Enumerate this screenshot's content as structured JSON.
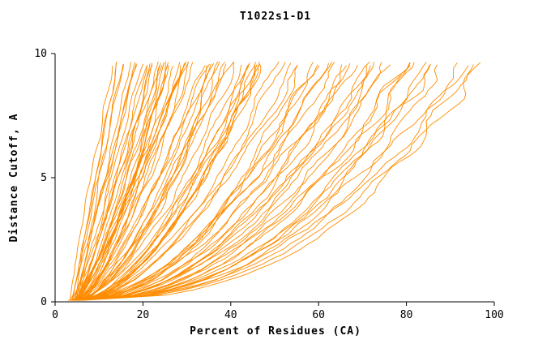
{
  "chart_data": {
    "type": "line",
    "title": "T1022s1-D1",
    "xlabel": "Percent of Residues (CA)",
    "ylabel": "Distance Cutoff, A",
    "xlim": [
      0,
      100
    ],
    "ylim": [
      0,
      10
    ],
    "x_ticks": [
      0,
      20,
      40,
      60,
      80,
      100
    ],
    "y_ticks": [
      0,
      5,
      10
    ],
    "grid": false,
    "legend": "none",
    "line_color": "#FF8C00",
    "axis_color": "#000000",
    "background": "#FFFFFF",
    "curve_top_y": 9.6,
    "curve_format": "[x_start_percent, x_end_percent, shape_exponent] per model curve; y rises 0 to ~9.6",
    "curves": [
      [
        4,
        13.5,
        1.1
      ],
      [
        4.5,
        14,
        1.0
      ],
      [
        5,
        14.5,
        1.2
      ],
      [
        4,
        15,
        0.95
      ],
      [
        5.5,
        16,
        1.05
      ],
      [
        4.5,
        17,
        0.9
      ],
      [
        5,
        18,
        1.0
      ],
      [
        6,
        18.5,
        0.85
      ],
      [
        4,
        19,
        0.9
      ],
      [
        5,
        20,
        0.8
      ],
      [
        4.5,
        21,
        0.85
      ],
      [
        5.5,
        22,
        0.75
      ],
      [
        4,
        23,
        0.9
      ],
      [
        6,
        24,
        0.7
      ],
      [
        5,
        25,
        0.8
      ],
      [
        4.5,
        26,
        0.75
      ],
      [
        5.5,
        27,
        0.7
      ],
      [
        4,
        28,
        0.85
      ],
      [
        6,
        29,
        0.72
      ],
      [
        5,
        30,
        0.78
      ],
      [
        4.5,
        20.5,
        0.95
      ],
      [
        5.5,
        23.5,
        0.8
      ],
      [
        4,
        26.5,
        0.7
      ],
      [
        6.5,
        28.5,
        0.75
      ],
      [
        5,
        21.5,
        0.88
      ],
      [
        4.5,
        24.5,
        0.78
      ],
      [
        5.5,
        27.5,
        0.72
      ],
      [
        4,
        29.5,
        0.8
      ],
      [
        6,
        22.5,
        0.82
      ],
      [
        5,
        25.5,
        0.76
      ],
      [
        4.5,
        31,
        0.68
      ],
      [
        5.5,
        32,
        0.72
      ],
      [
        4,
        33,
        0.65
      ],
      [
        6,
        34,
        0.7
      ],
      [
        5,
        35,
        0.62
      ],
      [
        4.5,
        36,
        0.68
      ],
      [
        5.5,
        37,
        0.6
      ],
      [
        4,
        38,
        0.66
      ],
      [
        6,
        39,
        0.63
      ],
      [
        5,
        40,
        0.58
      ],
      [
        4.5,
        41,
        0.64
      ],
      [
        5.5,
        42,
        0.6
      ],
      [
        4,
        43,
        0.62
      ],
      [
        6,
        44,
        0.57
      ],
      [
        5,
        45,
        0.6
      ],
      [
        4.5,
        46,
        0.55
      ],
      [
        5.5,
        47,
        0.58
      ],
      [
        4,
        48,
        0.56
      ],
      [
        6,
        49,
        0.6
      ],
      [
        5,
        50,
        0.54
      ],
      [
        4.5,
        31.5,
        0.66
      ],
      [
        5.5,
        35.5,
        0.61
      ],
      [
        4,
        38.5,
        0.64
      ],
      [
        6,
        42.5,
        0.58
      ],
      [
        5,
        46.5,
        0.56
      ],
      [
        4.5,
        52,
        0.52
      ],
      [
        5.5,
        54,
        0.55
      ],
      [
        4,
        56,
        0.5
      ],
      [
        6,
        58,
        0.53
      ],
      [
        5,
        60,
        0.5
      ],
      [
        4.5,
        62,
        0.52
      ],
      [
        5.5,
        64,
        0.48
      ],
      [
        4,
        66,
        0.5
      ],
      [
        6,
        68,
        0.47
      ],
      [
        5,
        70,
        0.5
      ],
      [
        4.5,
        72,
        0.46
      ],
      [
        5.5,
        74,
        0.48
      ],
      [
        4,
        53,
        0.54
      ],
      [
        6,
        57,
        0.5
      ],
      [
        5,
        61,
        0.49
      ],
      [
        4.5,
        65,
        0.51
      ],
      [
        5.5,
        69,
        0.47
      ],
      [
        4,
        73,
        0.45
      ],
      [
        5,
        76,
        0.46
      ],
      [
        4.5,
        78,
        0.44
      ],
      [
        5.5,
        80,
        0.46
      ],
      [
        4,
        82,
        0.43
      ],
      [
        6,
        84,
        0.45
      ],
      [
        5,
        86,
        0.42
      ],
      [
        4.5,
        88,
        0.44
      ],
      [
        5.5,
        90,
        0.41
      ],
      [
        4,
        92,
        0.43
      ],
      [
        6,
        94,
        0.4
      ],
      [
        5,
        95.5,
        0.42
      ],
      [
        4.5,
        79,
        0.45
      ],
      [
        5.5,
        85,
        0.42
      ],
      [
        4,
        91,
        0.41
      ]
    ]
  }
}
